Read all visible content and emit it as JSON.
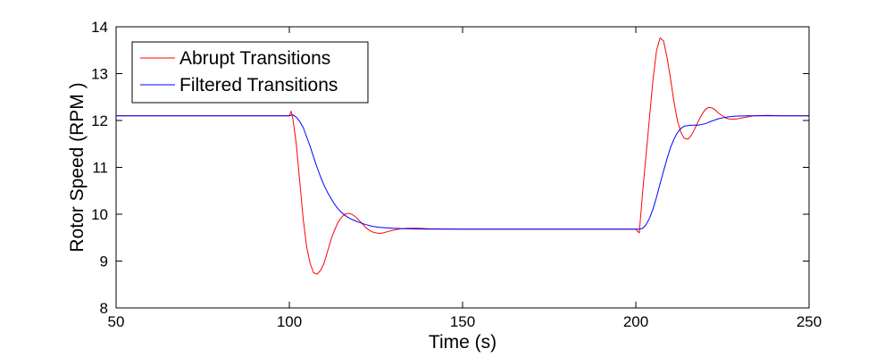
{
  "chart_data": {
    "type": "line",
    "title": "",
    "xlabel": "Time (s)",
    "ylabel": "Rotor Speed (RPM )",
    "xlim": [
      50,
      250
    ],
    "ylim": [
      8,
      14
    ],
    "xticks": [
      50,
      100,
      150,
      200,
      250
    ],
    "yticks": [
      8,
      9,
      10,
      11,
      12,
      13,
      14
    ],
    "grid": false,
    "legend": "top-left",
    "series": [
      {
        "name": "Abrupt Transitions",
        "color": "#ff0000",
        "points": [
          [
            50,
            12.1
          ],
          [
            100,
            12.1
          ],
          [
            100.5,
            12.2
          ],
          [
            101,
            12.05
          ],
          [
            102,
            11.5
          ],
          [
            103,
            10.7
          ],
          [
            104,
            9.9
          ],
          [
            105,
            9.3
          ],
          [
            106,
            8.95
          ],
          [
            107,
            8.75
          ],
          [
            108,
            8.72
          ],
          [
            109,
            8.8
          ],
          [
            110,
            8.95
          ],
          [
            111,
            9.2
          ],
          [
            112,
            9.45
          ],
          [
            113,
            9.65
          ],
          [
            114,
            9.82
          ],
          [
            115,
            9.93
          ],
          [
            116,
            10.0
          ],
          [
            117,
            10.02
          ],
          [
            118,
            10.0
          ],
          [
            119,
            9.95
          ],
          [
            120,
            9.88
          ],
          [
            121,
            9.8
          ],
          [
            122,
            9.72
          ],
          [
            123,
            9.66
          ],
          [
            124,
            9.62
          ],
          [
            125,
            9.6
          ],
          [
            126,
            9.59
          ],
          [
            127,
            9.6
          ],
          [
            128,
            9.62
          ],
          [
            130,
            9.66
          ],
          [
            132,
            9.69
          ],
          [
            134,
            9.7
          ],
          [
            137,
            9.7
          ],
          [
            140,
            9.69
          ],
          [
            150,
            9.68
          ],
          [
            200,
            9.68
          ],
          [
            201,
            9.6
          ],
          [
            202,
            10.5
          ],
          [
            203,
            11.3
          ],
          [
            204,
            12.1
          ],
          [
            205,
            12.9
          ],
          [
            206,
            13.5
          ],
          [
            207,
            13.76
          ],
          [
            208,
            13.7
          ],
          [
            209,
            13.35
          ],
          [
            210,
            12.9
          ],
          [
            211,
            12.4
          ],
          [
            212,
            12.0
          ],
          [
            213,
            11.75
          ],
          [
            214,
            11.62
          ],
          [
            215,
            11.6
          ],
          [
            216,
            11.68
          ],
          [
            217,
            11.82
          ],
          [
            218,
            11.98
          ],
          [
            219,
            12.12
          ],
          [
            220,
            12.23
          ],
          [
            221,
            12.28
          ],
          [
            222,
            12.27
          ],
          [
            223,
            12.22
          ],
          [
            224,
            12.15
          ],
          [
            225,
            12.1
          ],
          [
            226,
            12.05
          ],
          [
            227,
            12.03
          ],
          [
            229,
            12.03
          ],
          [
            231,
            12.06
          ],
          [
            234,
            12.1
          ],
          [
            238,
            12.11
          ],
          [
            242,
            12.1
          ],
          [
            250,
            12.1
          ]
        ]
      },
      {
        "name": "Filtered Transitions",
        "color": "#0000ff",
        "points": [
          [
            50,
            12.1
          ],
          [
            100,
            12.1
          ],
          [
            101,
            12.12
          ],
          [
            102,
            12.07
          ],
          [
            103,
            11.98
          ],
          [
            104,
            11.85
          ],
          [
            105,
            11.65
          ],
          [
            106,
            11.45
          ],
          [
            107,
            11.22
          ],
          [
            108,
            11.0
          ],
          [
            109,
            10.8
          ],
          [
            110,
            10.62
          ],
          [
            111,
            10.47
          ],
          [
            112,
            10.34
          ],
          [
            113,
            10.22
          ],
          [
            114,
            10.12
          ],
          [
            115,
            10.04
          ],
          [
            116,
            9.98
          ],
          [
            117,
            9.93
          ],
          [
            118,
            9.89
          ],
          [
            119,
            9.86
          ],
          [
            120,
            9.83
          ],
          [
            122,
            9.78
          ],
          [
            124,
            9.74
          ],
          [
            126,
            9.72
          ],
          [
            128,
            9.71
          ],
          [
            130,
            9.7
          ],
          [
            133,
            9.69
          ],
          [
            140,
            9.68
          ],
          [
            150,
            9.68
          ],
          [
            200,
            9.68
          ],
          [
            201,
            9.68
          ],
          [
            202,
            9.7
          ],
          [
            203,
            9.78
          ],
          [
            204,
            9.92
          ],
          [
            205,
            10.12
          ],
          [
            206,
            10.37
          ],
          [
            207,
            10.65
          ],
          [
            208,
            10.92
          ],
          [
            209,
            11.18
          ],
          [
            210,
            11.42
          ],
          [
            211,
            11.6
          ],
          [
            212,
            11.74
          ],
          [
            213,
            11.83
          ],
          [
            214,
            11.88
          ],
          [
            216,
            11.9
          ],
          [
            218,
            11.9
          ],
          [
            220,
            11.93
          ],
          [
            222,
            11.99
          ],
          [
            224,
            12.04
          ],
          [
            226,
            12.07
          ],
          [
            228,
            12.09
          ],
          [
            232,
            12.1
          ],
          [
            250,
            12.1
          ]
        ]
      }
    ]
  }
}
